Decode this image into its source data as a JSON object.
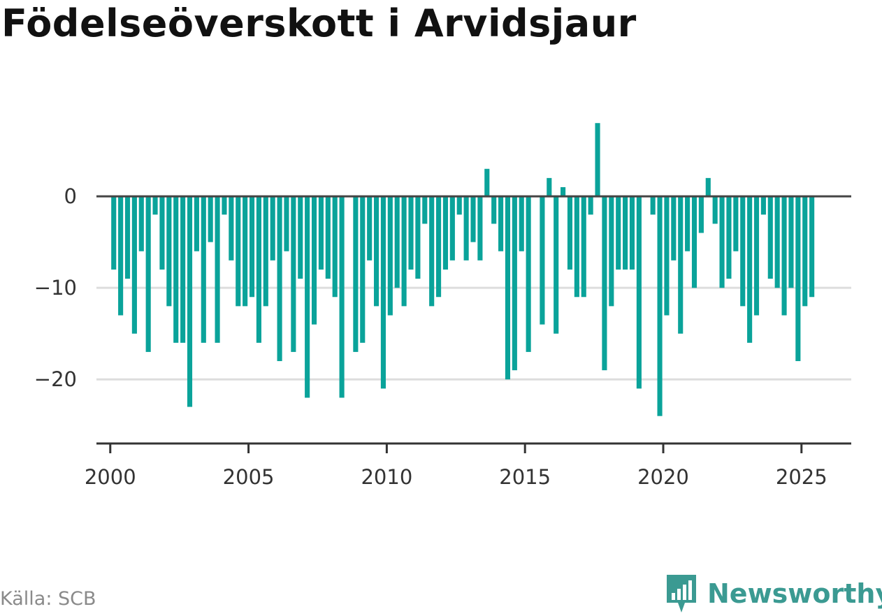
{
  "title": "Födelseöverskott i Arvidsjaur",
  "source": "Källa: SCB",
  "brand": "Newsworthy",
  "colors": {
    "bar": "#0aa39a",
    "zero_line": "#444444",
    "grid": "#dddddd",
    "brand": "#3b9a92"
  },
  "chart_data": {
    "type": "bar",
    "title": "Födelseöverskott i Arvidsjaur",
    "xlabel": "",
    "ylabel": "",
    "frequency": "quarterly",
    "start": "2000 Q1",
    "xlim": [
      1999.5,
      2026.8
    ],
    "ylim": [
      -27,
      10
    ],
    "x_ticks": [
      2000,
      2005,
      2010,
      2015,
      2020,
      2025
    ],
    "x_tick_labels": [
      "2000",
      "2005",
      "2010",
      "2015",
      "2020",
      "2025"
    ],
    "y_ticks": [
      0,
      -10,
      -20
    ],
    "y_tick_labels": [
      "0",
      "−10",
      "−20"
    ],
    "grid": "horizontal",
    "values": [
      -8,
      -13,
      -9,
      -15,
      -6,
      -17,
      -2,
      -8,
      -12,
      -16,
      -16,
      -23,
      -6,
      -16,
      -5,
      -16,
      -2,
      -7,
      -12,
      -12,
      -11,
      -16,
      -12,
      -7,
      -18,
      -6,
      -17,
      -9,
      -22,
      -14,
      -8,
      -9,
      -11,
      -22,
      0,
      -17,
      -16,
      -7,
      -12,
      -21,
      -13,
      -10,
      -12,
      -8,
      -9,
      -3,
      -12,
      -11,
      -8,
      -7,
      -2,
      -7,
      -5,
      -7,
      3,
      -3,
      -6,
      -20,
      -19,
      -6,
      -17,
      0,
      -14,
      2,
      -15,
      1,
      -8,
      -11,
      -11,
      -2,
      8,
      -19,
      -12,
      -8,
      -8,
      -8,
      -21,
      0,
      -2,
      -24,
      -13,
      -7,
      -15,
      -6,
      -10,
      -4,
      2,
      -3,
      -10,
      -9,
      -6,
      -12,
      -16,
      -13,
      -2,
      -9,
      -10,
      -13,
      -10,
      -18,
      -12,
      -11
    ]
  }
}
